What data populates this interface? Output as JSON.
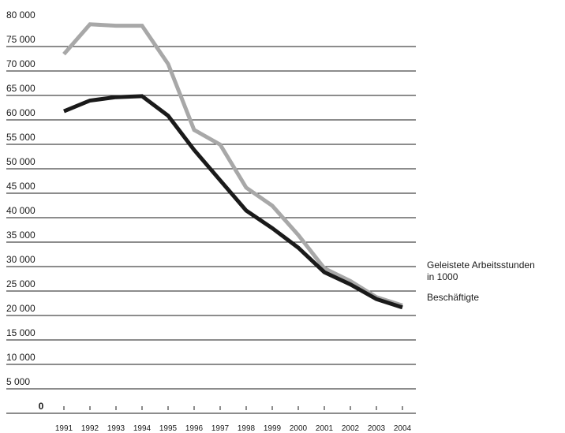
{
  "chart_data": {
    "type": "line",
    "x": [
      "1991",
      "1992",
      "1993",
      "1994",
      "1995",
      "1996",
      "1997",
      "1998",
      "1999",
      "2000",
      "2001",
      "2002",
      "2003",
      "2004"
    ],
    "ylim": [
      0,
      80000
    ],
    "yticks": [
      0,
      5000,
      10000,
      15000,
      20000,
      25000,
      30000,
      35000,
      40000,
      45000,
      50000,
      55000,
      60000,
      65000,
      70000,
      75000,
      80000
    ],
    "ytick_labels": [
      "0",
      "5 000",
      "10 000",
      "15 000",
      "20 000",
      "25 000",
      "30 000",
      "35 000",
      "40 000",
      "45 000",
      "50 000",
      "55 000",
      "60 000",
      "65 000",
      "70 000",
      "75 000",
      "80 000"
    ],
    "grid": true,
    "legend_position": "right",
    "series": [
      {
        "name": "Geleistete Arbeitsstunden in 1000",
        "legend_lines": [
          "Geleistete Arbeitsstunden",
          "in 1000"
        ],
        "color": "#a8a8a8",
        "values": [
          72000,
          78100,
          77800,
          77800,
          70000,
          56500,
          53500,
          44700,
          41000,
          35000,
          28200,
          25600,
          22300,
          20600
        ]
      },
      {
        "name": "Beschäftigte",
        "legend_lines": [
          "Beschäftigte"
        ],
        "color": "#1a1a1a",
        "values": [
          60300,
          62500,
          63200,
          63400,
          59400,
          52400,
          46200,
          40000,
          36400,
          32400,
          27400,
          24900,
          21900,
          20200
        ]
      }
    ]
  }
}
